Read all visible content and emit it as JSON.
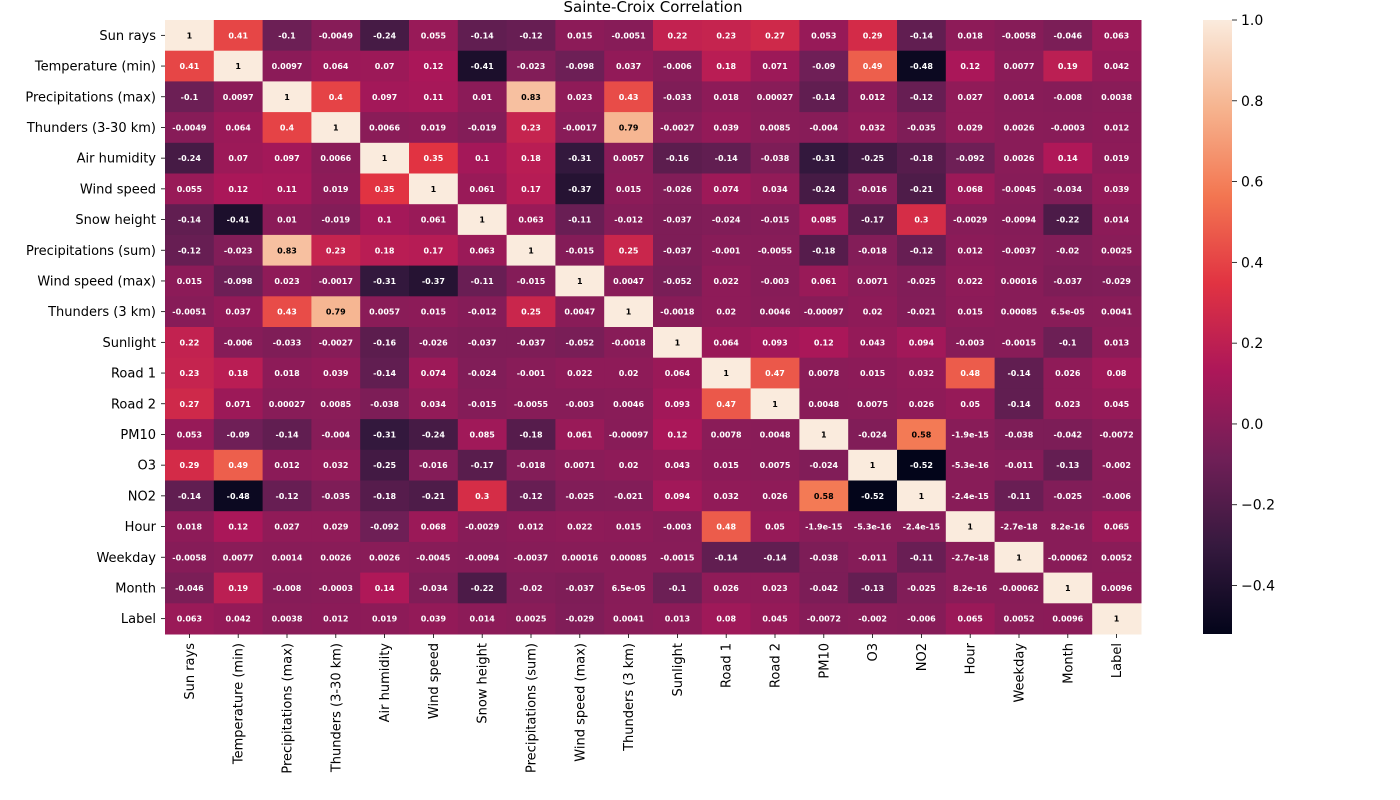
{
  "chart_data": {
    "type": "heatmap",
    "title": "Sainte-Croix Correlation",
    "variables": [
      "Sun rays",
      "Temperature (min)",
      "Precipitations (max)",
      "Thunders (3-30 km)",
      "Air humidity",
      "Wind speed",
      "Snow height",
      "Precipitations (sum)",
      "Wind speed (max)",
      "Thunders (3 km)",
      "Sunlight",
      "Road 1",
      "Road 2",
      "PM10",
      "O3",
      "NO2",
      "Hour",
      "Weekday",
      "Month",
      "Label"
    ],
    "values": [
      [
        1,
        0.41,
        -0.1,
        -0.0049,
        -0.24,
        0.055,
        -0.14,
        -0.12,
        0.015,
        -0.0051,
        0.22,
        0.23,
        0.27,
        0.053,
        0.29,
        -0.14,
        0.018,
        -0.0058,
        -0.046,
        0.063
      ],
      [
        0.41,
        1,
        0.0097,
        0.064,
        0.07,
        0.12,
        -0.41,
        -0.023,
        -0.098,
        0.037,
        -0.006,
        0.18,
        0.071,
        -0.09,
        0.49,
        -0.48,
        0.12,
        0.0077,
        0.19,
        0.042
      ],
      [
        -0.1,
        0.0097,
        1,
        0.4,
        0.097,
        0.11,
        0.01,
        0.83,
        0.023,
        0.43,
        -0.033,
        0.018,
        0.00027,
        -0.14,
        0.012,
        -0.12,
        0.027,
        0.0014,
        -0.008,
        0.0038
      ],
      [
        -0.0049,
        0.064,
        0.4,
        1,
        0.0066,
        0.019,
        -0.019,
        0.23,
        -0.0017,
        0.79,
        -0.0027,
        0.039,
        0.0085,
        -0.004,
        0.032,
        -0.035,
        0.029,
        0.0026,
        -0.0003,
        0.012
      ],
      [
        -0.24,
        0.07,
        0.097,
        0.0066,
        1,
        0.35,
        0.1,
        0.18,
        -0.31,
        0.0057,
        -0.16,
        -0.14,
        -0.038,
        -0.31,
        -0.25,
        -0.18,
        -0.092,
        0.0026,
        0.14,
        0.019
      ],
      [
        0.055,
        0.12,
        0.11,
        0.019,
        0.35,
        1,
        0.061,
        0.17,
        -0.37,
        0.015,
        -0.026,
        0.074,
        0.034,
        -0.24,
        -0.016,
        -0.21,
        0.068,
        -0.0045,
        -0.034,
        0.039
      ],
      [
        -0.14,
        -0.41,
        0.01,
        -0.019,
        0.1,
        0.061,
        1,
        0.063,
        -0.11,
        -0.012,
        -0.037,
        -0.024,
        -0.015,
        0.085,
        -0.17,
        0.3,
        -0.0029,
        -0.0094,
        -0.22,
        0.014
      ],
      [
        -0.12,
        -0.023,
        0.83,
        0.23,
        0.18,
        0.17,
        0.063,
        1,
        -0.015,
        0.25,
        -0.037,
        -0.001,
        -0.0055,
        -0.18,
        -0.018,
        -0.12,
        0.012,
        -0.0037,
        -0.02,
        0.0025
      ],
      [
        0.015,
        -0.098,
        0.023,
        -0.0017,
        -0.31,
        -0.37,
        -0.11,
        -0.015,
        1,
        0.0047,
        -0.052,
        0.022,
        -0.003,
        0.061,
        0.0071,
        -0.025,
        0.022,
        0.00016,
        -0.037,
        -0.029
      ],
      [
        -0.0051,
        0.037,
        0.43,
        0.79,
        0.0057,
        0.015,
        -0.012,
        0.25,
        0.0047,
        1,
        -0.0018,
        0.02,
        0.0046,
        -0.00097,
        0.02,
        -0.021,
        0.015,
        0.00085,
        6.5e-05,
        0.0041
      ],
      [
        0.22,
        -0.006,
        -0.033,
        -0.0027,
        -0.16,
        -0.026,
        -0.037,
        -0.037,
        -0.052,
        -0.0018,
        1,
        0.064,
        0.093,
        0.12,
        0.043,
        0.094,
        -0.003,
        -0.0015,
        -0.1,
        0.013
      ],
      [
        0.23,
        0.18,
        0.018,
        0.039,
        -0.14,
        0.074,
        -0.024,
        -0.001,
        0.022,
        0.02,
        0.064,
        1,
        0.47,
        0.0078,
        0.015,
        0.032,
        0.48,
        -0.14,
        0.026,
        0.08
      ],
      [
        0.27,
        0.071,
        0.00027,
        0.0085,
        -0.038,
        0.034,
        -0.015,
        -0.0055,
        -0.003,
        0.0046,
        0.093,
        0.47,
        1,
        0.0048,
        0.0075,
        0.026,
        0.05,
        -0.14,
        0.023,
        0.045
      ],
      [
        0.053,
        -0.09,
        -0.14,
        -0.004,
        -0.31,
        -0.24,
        0.085,
        -0.18,
        0.061,
        -0.00097,
        0.12,
        0.0078,
        0.0048,
        1,
        -0.024,
        0.58,
        -1.9e-15,
        -0.038,
        -0.042,
        -0.0072
      ],
      [
        0.29,
        0.49,
        0.012,
        0.032,
        -0.25,
        -0.016,
        -0.17,
        -0.018,
        0.0071,
        0.02,
        0.043,
        0.015,
        0.0075,
        -0.024,
        1,
        -0.52,
        -5.3e-16,
        -0.011,
        -0.13,
        -0.002
      ],
      [
        -0.14,
        -0.48,
        -0.12,
        -0.035,
        -0.18,
        -0.21,
        0.3,
        -0.12,
        -0.025,
        -0.021,
        0.094,
        0.032,
        0.026,
        0.58,
        -0.52,
        1,
        -2.4e-15,
        -0.11,
        -0.025,
        -0.006
      ],
      [
        0.018,
        0.12,
        0.027,
        0.029,
        -0.092,
        0.068,
        -0.0029,
        0.012,
        0.022,
        0.015,
        -0.003,
        0.48,
        0.05,
        -1.9e-15,
        -5.3e-16,
        -2.4e-15,
        1,
        -2.7e-18,
        8.2e-16,
        0.065
      ],
      [
        -0.0058,
        0.0077,
        0.0014,
        0.0026,
        0.0026,
        -0.0045,
        -0.0094,
        -0.0037,
        0.00016,
        0.00085,
        -0.0015,
        -0.14,
        -0.14,
        -0.038,
        -0.011,
        -0.11,
        -2.7e-18,
        1,
        -0.00062,
        0.0052
      ],
      [
        -0.046,
        0.19,
        -0.008,
        -0.0003,
        0.14,
        -0.034,
        -0.22,
        -0.02,
        -0.037,
        6.5e-05,
        -0.1,
        0.026,
        0.023,
        -0.042,
        -0.13,
        -0.025,
        8.2e-16,
        -0.00062,
        1,
        0.0096
      ],
      [
        0.063,
        0.042,
        0.0038,
        0.012,
        0.019,
        0.039,
        0.014,
        0.0025,
        -0.029,
        0.0041,
        0.013,
        0.08,
        0.045,
        -0.0072,
        -0.002,
        -0.006,
        0.065,
        0.0052,
        0.0096,
        1
      ]
    ],
    "value_labels": [
      [
        "1",
        "0.41",
        "-0.1",
        "-0.0049",
        "-0.24",
        "0.055",
        "-0.14",
        "-0.12",
        "0.015",
        "-0.0051",
        "0.22",
        "0.23",
        "0.27",
        "0.053",
        "0.29",
        "-0.14",
        "0.018",
        "-0.0058",
        "-0.046",
        "0.063"
      ],
      [
        "0.41",
        "1",
        "0.0097",
        "0.064",
        "0.07",
        "0.12",
        "-0.41",
        "-0.023",
        "-0.098",
        "0.037",
        "-0.006",
        "0.18",
        "0.071",
        "-0.09",
        "0.49",
        "-0.48",
        "0.12",
        "0.0077",
        "0.19",
        "0.042"
      ],
      [
        "-0.1",
        "0.0097",
        "1",
        "0.4",
        "0.097",
        "0.11",
        "0.01",
        "0.83",
        "0.023",
        "0.43",
        "-0.033",
        "0.018",
        "0.00027",
        "-0.14",
        "0.012",
        "-0.12",
        "0.027",
        "0.0014",
        "-0.008",
        "0.0038"
      ],
      [
        "-0.0049",
        "0.064",
        "0.4",
        "1",
        "0.0066",
        "0.019",
        "-0.019",
        "0.23",
        "-0.0017",
        "0.79",
        "-0.0027",
        "0.039",
        "0.0085",
        "-0.004",
        "0.032",
        "-0.035",
        "0.029",
        "0.0026",
        "-0.0003",
        "0.012"
      ],
      [
        "-0.24",
        "0.07",
        "0.097",
        "0.0066",
        "1",
        "0.35",
        "0.1",
        "0.18",
        "-0.31",
        "0.0057",
        "-0.16",
        "-0.14",
        "-0.038",
        "-0.31",
        "-0.25",
        "-0.18",
        "-0.092",
        "0.0026",
        "0.14",
        "0.019"
      ],
      [
        "0.055",
        "0.12",
        "0.11",
        "0.019",
        "0.35",
        "1",
        "0.061",
        "0.17",
        "-0.37",
        "0.015",
        "-0.026",
        "0.074",
        "0.034",
        "-0.24",
        "-0.016",
        "-0.21",
        "0.068",
        "-0.0045",
        "-0.034",
        "0.039"
      ],
      [
        "-0.14",
        "-0.41",
        "0.01",
        "-0.019",
        "0.1",
        "0.061",
        "1",
        "0.063",
        "-0.11",
        "-0.012",
        "-0.037",
        "-0.024",
        "-0.015",
        "0.085",
        "-0.17",
        "0.3",
        "-0.0029",
        "-0.0094",
        "-0.22",
        "0.014"
      ],
      [
        "-0.12",
        "-0.023",
        "0.83",
        "0.23",
        "0.18",
        "0.17",
        "0.063",
        "1",
        "-0.015",
        "0.25",
        "-0.037",
        "-0.001",
        "-0.0055",
        "-0.18",
        "-0.018",
        "-0.12",
        "0.012",
        "-0.0037",
        "-0.02",
        "0.0025"
      ],
      [
        "0.015",
        "-0.098",
        "0.023",
        "-0.0017",
        "-0.31",
        "-0.37",
        "-0.11",
        "-0.015",
        "1",
        "0.0047",
        "-0.052",
        "0.022",
        "-0.003",
        "0.061",
        "0.0071",
        "-0.025",
        "0.022",
        "0.00016",
        "-0.037",
        "-0.029"
      ],
      [
        "-0.0051",
        "0.037",
        "0.43",
        "0.79",
        "0.0057",
        "0.015",
        "-0.012",
        "0.25",
        "0.0047",
        "1",
        "-0.0018",
        "0.02",
        "0.0046",
        "-0.00097",
        "0.02",
        "-0.021",
        "0.015",
        "0.00085",
        "6.5e-05",
        "0.0041"
      ],
      [
        "0.22",
        "-0.006",
        "-0.033",
        "-0.0027",
        "-0.16",
        "-0.026",
        "-0.037",
        "-0.037",
        "-0.052",
        "-0.0018",
        "1",
        "0.064",
        "0.093",
        "0.12",
        "0.043",
        "0.094",
        "-0.003",
        "-0.0015",
        "-0.1",
        "0.013"
      ],
      [
        "0.23",
        "0.18",
        "0.018",
        "0.039",
        "-0.14",
        "0.074",
        "-0.024",
        "-0.001",
        "0.022",
        "0.02",
        "0.064",
        "1",
        "0.47",
        "0.0078",
        "0.015",
        "0.032",
        "0.48",
        "-0.14",
        "0.026",
        "0.08"
      ],
      [
        "0.27",
        "0.071",
        "0.00027",
        "0.0085",
        "-0.038",
        "0.034",
        "-0.015",
        "-0.0055",
        "-0.003",
        "0.0046",
        "0.093",
        "0.47",
        "1",
        "0.0048",
        "0.0075",
        "0.026",
        "0.05",
        "-0.14",
        "0.023",
        "0.045"
      ],
      [
        "0.053",
        "-0.09",
        "-0.14",
        "-0.004",
        "-0.31",
        "-0.24",
        "0.085",
        "-0.18",
        "0.061",
        "-0.00097",
        "0.12",
        "0.0078",
        "0.0048",
        "1",
        "-0.024",
        "0.58",
        "-1.9e-15",
        "-0.038",
        "-0.042",
        "-0.0072"
      ],
      [
        "0.29",
        "0.49",
        "0.012",
        "0.032",
        "-0.25",
        "-0.016",
        "-0.17",
        "-0.018",
        "0.0071",
        "0.02",
        "0.043",
        "0.015",
        "0.0075",
        "-0.024",
        "1",
        "-0.52",
        "-5.3e-16",
        "-0.011",
        "-0.13",
        "-0.002"
      ],
      [
        "-0.14",
        "-0.48",
        "-0.12",
        "-0.035",
        "-0.18",
        "-0.21",
        "0.3",
        "-0.12",
        "-0.025",
        "-0.021",
        "0.094",
        "0.032",
        "0.026",
        "0.58",
        "-0.52",
        "1",
        "-2.4e-15",
        "-0.11",
        "-0.025",
        "-0.006"
      ],
      [
        "0.018",
        "0.12",
        "0.027",
        "0.029",
        "-0.092",
        "0.068",
        "-0.0029",
        "0.012",
        "0.022",
        "0.015",
        "-0.003",
        "0.48",
        "0.05",
        "-1.9e-15",
        "-5.3e-16",
        "-2.4e-15",
        "1",
        "-2.7e-18",
        "8.2e-16",
        "0.065"
      ],
      [
        "-0.0058",
        "0.0077",
        "0.0014",
        "0.0026",
        "0.0026",
        "-0.0045",
        "-0.0094",
        "-0.0037",
        "0.00016",
        "0.00085",
        "-0.0015",
        "-0.14",
        "-0.14",
        "-0.038",
        "-0.011",
        "-0.11",
        "-2.7e-18",
        "1",
        "-0.00062",
        "0.0052"
      ],
      [
        "-0.046",
        "0.19",
        "-0.008",
        "-0.0003",
        "0.14",
        "-0.034",
        "-0.22",
        "-0.02",
        "-0.037",
        "6.5e-05",
        "-0.1",
        "0.026",
        "0.023",
        "-0.042",
        "-0.13",
        "-0.025",
        "8.2e-16",
        "-0.00062",
        "1",
        "0.0096"
      ],
      [
        "0.063",
        "0.042",
        "0.0038",
        "0.012",
        "0.019",
        "0.039",
        "0.014",
        "0.0025",
        "-0.029",
        "0.0041",
        "0.013",
        "0.08",
        "0.045",
        "-0.0072",
        "-0.002",
        "-0.006",
        "0.065",
        "0.0052",
        "0.0096",
        "1"
      ]
    ],
    "colorbar": {
      "vmin": -0.52,
      "vmax": 1.0,
      "ticks": [
        -0.4,
        -0.2,
        0.0,
        0.2,
        0.4,
        0.6,
        0.8,
        1.0
      ],
      "tick_labels": [
        "−0.4",
        "−0.2",
        "0.0",
        "0.2",
        "0.4",
        "0.6",
        "0.8",
        "1.0"
      ],
      "colormap": "rocket",
      "colormap_stops": [
        "#03051a",
        "#35193e",
        "#701f57",
        "#ad1759",
        "#e13342",
        "#f37651",
        "#f6b48f",
        "#faebdd"
      ]
    },
    "grid": false,
    "legend": "colorbar-right"
  }
}
